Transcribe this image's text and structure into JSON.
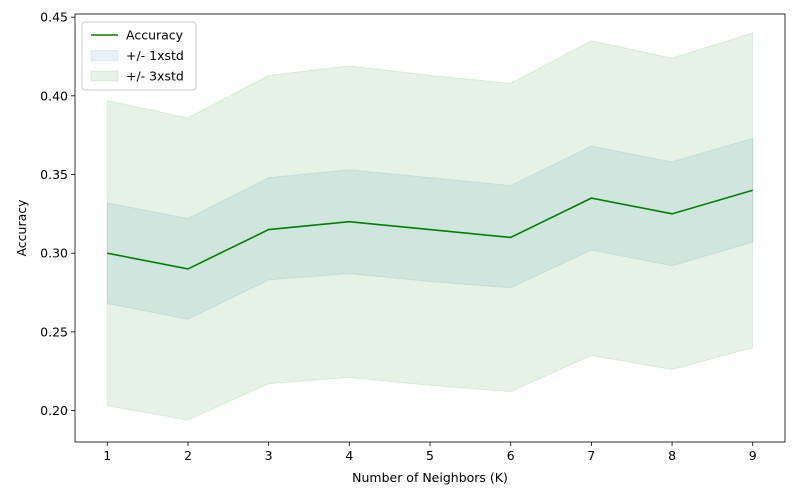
{
  "chart_data": {
    "type": "line",
    "title": "",
    "xlabel": "Number of Neighbors (K)",
    "ylabel": "Accuracy",
    "x": [
      1,
      2,
      3,
      4,
      5,
      6,
      7,
      8,
      9
    ],
    "xlim": [
      0.6,
      9.4
    ],
    "ylim": [
      0.18,
      0.452
    ],
    "xticks": [
      1,
      2,
      3,
      4,
      5,
      6,
      7,
      8,
      9
    ],
    "yticks": [
      "0.20",
      "0.25",
      "0.30",
      "0.35",
      "0.40",
      "0.45"
    ],
    "grid": false,
    "legend_position": "top-left",
    "series": [
      {
        "name": "Accuracy",
        "kind": "line",
        "color": "#008000",
        "values": [
          0.3,
          0.29,
          0.315,
          0.32,
          0.315,
          0.31,
          0.335,
          0.325,
          0.34
        ]
      }
    ],
    "bands": [
      {
        "name": "+/- 1xstd",
        "color": "#1f77b4",
        "opacity": 0.1,
        "lower": [
          0.268,
          0.258,
          0.283,
          0.287,
          0.282,
          0.278,
          0.302,
          0.292,
          0.307
        ],
        "upper": [
          0.332,
          0.322,
          0.348,
          0.353,
          0.348,
          0.343,
          0.368,
          0.358,
          0.373
        ]
      },
      {
        "name": "+/- 3xstd",
        "color": "#008000",
        "opacity": 0.1,
        "lower": [
          0.203,
          0.194,
          0.217,
          0.221,
          0.216,
          0.212,
          0.235,
          0.226,
          0.24
        ],
        "upper": [
          0.397,
          0.386,
          0.413,
          0.419,
          0.413,
          0.408,
          0.435,
          0.424,
          0.44
        ]
      }
    ]
  }
}
